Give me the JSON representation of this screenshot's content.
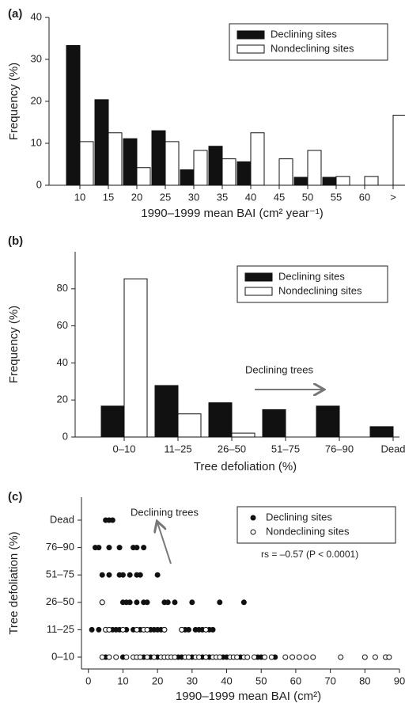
{
  "chart_data": [
    {
      "type": "bar",
      "panel_label": "(a)",
      "y_label": "Frequency (%)",
      "x_label": "1990–1999 mean BAI (cm² year⁻¹)",
      "categories": [
        "10",
        "15",
        "20",
        "25",
        "30",
        "35",
        "40",
        "45",
        "50",
        "55",
        "60",
        ">"
      ],
      "series": [
        {
          "name": "Declining sites",
          "color": "#111111",
          "values": [
            33.3,
            20.4,
            11.1,
            13.0,
            3.7,
            9.3,
            5.6,
            0,
            1.9,
            1.9,
            0,
            0
          ]
        },
        {
          "name": "Nondeclining sites",
          "color": "#ffffff",
          "values": [
            10.4,
            12.5,
            4.2,
            10.4,
            8.3,
            6.3,
            12.5,
            6.3,
            8.3,
            2.1,
            2.1,
            16.7
          ]
        }
      ],
      "ylim": [
        0,
        40
      ],
      "yticks": [
        0,
        10,
        20,
        30,
        40
      ],
      "grid": false,
      "legend": "top-right"
    },
    {
      "type": "bar",
      "panel_label": "(b)",
      "y_label": "Frequency (%)",
      "x_label": "Tree defoliation (%)",
      "categories": [
        "0–10",
        "11–25",
        "26–50",
        "51–75",
        "76–90",
        "Dead"
      ],
      "series": [
        {
          "name": "Declining sites",
          "color": "#111111",
          "values": [
            16.7,
            27.8,
            18.5,
            14.8,
            16.7,
            5.6
          ]
        },
        {
          "name": "Nondeclining sites",
          "color": "#ffffff",
          "values": [
            85.4,
            12.5,
            2.1,
            0,
            0,
            0
          ]
        }
      ],
      "annotation": "Declining trees",
      "ylim": [
        0,
        100
      ],
      "yticks": [
        0,
        20,
        40,
        60,
        80
      ],
      "grid": false,
      "legend": "top-right"
    },
    {
      "type": "scatter",
      "panel_label": "(c)",
      "y_label": "Tree defoliation (%)",
      "x_label": "1990–1999 mean BAI (cm²)",
      "y_categories": [
        "0–10",
        "11–25",
        "26–50",
        "51–75",
        "76–90",
        "Dead"
      ],
      "series": [
        {
          "name": "Declining sites",
          "color": "#111111",
          "x": [
            5,
            10,
            16,
            18,
            20,
            26,
            27,
            30,
            33,
            35,
            39,
            40,
            44,
            49,
            50,
            54,
            1,
            3,
            5,
            7,
            8,
            9,
            11,
            13,
            15,
            18,
            19,
            20,
            21,
            22,
            27,
            28,
            29,
            31,
            32,
            33,
            35,
            36,
            4,
            10,
            11,
            12,
            14,
            16,
            17,
            22,
            23,
            25,
            30,
            38,
            45,
            4,
            6,
            9,
            10,
            12,
            14,
            15,
            20,
            2,
            3,
            6,
            9,
            13,
            14,
            16,
            5,
            6,
            7
          ],
          "y": [
            "0–10",
            "0–10",
            "0–10",
            "0–10",
            "0–10",
            "0–10",
            "0–10",
            "0–10",
            "0–10",
            "0–10",
            "0–10",
            "0–10",
            "0–10",
            "0–10",
            "0–10",
            "0–10",
            "11–25",
            "11–25",
            "11–25",
            "11–25",
            "11–25",
            "11–25",
            "11–25",
            "11–25",
            "11–25",
            "11–25",
            "11–25",
            "11–25",
            "11–25",
            "11–25",
            "11–25",
            "11–25",
            "11–25",
            "11–25",
            "11–25",
            "11–25",
            "11–25",
            "11–25",
            "26–50",
            "26–50",
            "26–50",
            "26–50",
            "26–50",
            "26–50",
            "26–50",
            "26–50",
            "26–50",
            "26–50",
            "26–50",
            "26–50",
            "26–50",
            "51–75",
            "51–75",
            "51–75",
            "51–75",
            "51–75",
            "51–75",
            "51–75",
            "51–75",
            "76–90",
            "76–90",
            "76–90",
            "76–90",
            "76–90",
            "76–90",
            "76–90",
            "Dead",
            "Dead",
            "Dead"
          ]
        },
        {
          "name": "Nondeclining sites",
          "color": "#ffffff",
          "x": [
            4,
            6,
            8,
            11,
            13,
            14,
            15,
            17,
            19,
            21,
            22,
            23,
            24,
            25,
            28,
            29,
            31,
            32,
            34,
            36,
            37,
            38,
            41,
            42,
            43,
            45,
            46,
            48,
            51,
            53,
            57,
            59,
            61,
            63,
            65,
            73,
            80,
            83,
            86,
            87,
            5,
            6,
            10,
            14,
            16,
            17,
            22,
            27,
            34,
            4
          ],
          "y": [
            "0–10",
            "0–10",
            "0–10",
            "0–10",
            "0–10",
            "0–10",
            "0–10",
            "0–10",
            "0–10",
            "0–10",
            "0–10",
            "0–10",
            "0–10",
            "0–10",
            "0–10",
            "0–10",
            "0–10",
            "0–10",
            "0–10",
            "0–10",
            "0–10",
            "0–10",
            "0–10",
            "0–10",
            "0–10",
            "0–10",
            "0–10",
            "0–10",
            "0–10",
            "0–10",
            "0–10",
            "0–10",
            "0–10",
            "0–10",
            "0–10",
            "0–10",
            "0–10",
            "0–10",
            "0–10",
            "0–10",
            "11–25",
            "11–25",
            "11–25",
            "11–25",
            "11–25",
            "11–25",
            "11–25",
            "11–25",
            "11–25",
            "26–50"
          ]
        }
      ],
      "annotations": [
        "Declining trees",
        "rs = –0.57 (P < 0.0001)"
      ],
      "xlim": [
        -2,
        90
      ],
      "xticks": [
        0,
        10,
        20,
        30,
        40,
        50,
        60,
        70,
        80,
        90
      ],
      "grid": false,
      "legend": "top-right"
    }
  ]
}
